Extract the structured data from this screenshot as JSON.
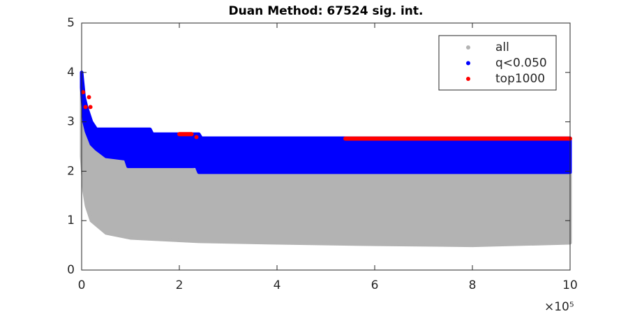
{
  "chart_data": {
    "type": "scatter",
    "title": "Duan Method: 67524 sig. int.",
    "x_multiplier": "×10⁵",
    "xlim": [
      0,
      1000000
    ],
    "xticks": [
      {
        "value": 0,
        "label": "0"
      },
      {
        "value": 200000,
        "label": "2"
      },
      {
        "value": 400000,
        "label": "4"
      },
      {
        "value": 600000,
        "label": "6"
      },
      {
        "value": 800000,
        "label": "8"
      },
      {
        "value": 1000000,
        "label": "10"
      }
    ],
    "ylim": [
      0,
      5
    ],
    "yticks": [
      0,
      1,
      2,
      3,
      4,
      5
    ],
    "legend": "top-right",
    "series": [
      {
        "name": "all",
        "color": "#b3b3b3",
        "x": [
          0,
          5000,
          10000,
          20000,
          50000,
          100000,
          200000,
          240000,
          400000,
          600000,
          800000,
          1000000
        ],
        "upper": [
          3.9,
          3.0,
          2.8,
          2.6,
          2.4,
          2.2,
          2.1,
          2.0,
          2.0,
          2.0,
          2.0,
          2.0
        ],
        "lower": [
          2.3,
          1.6,
          1.3,
          1.0,
          0.75,
          0.65,
          0.6,
          0.58,
          0.55,
          0.52,
          0.5,
          0.55
        ]
      },
      {
        "name": "q<0.050",
        "color": "#0000ff",
        "x": [
          0,
          5000,
          10000,
          20000,
          30000,
          50000,
          90000,
          95000,
          140000,
          145000,
          235000,
          240000,
          245000,
          1000000
        ],
        "upper": [
          4.0,
          3.5,
          3.3,
          3.0,
          2.85,
          2.85,
          2.85,
          2.85,
          2.85,
          2.75,
          2.75,
          2.75,
          2.67,
          2.67
        ],
        "lower": [
          3.7,
          3.0,
          2.8,
          2.55,
          2.45,
          2.3,
          2.25,
          2.1,
          2.1,
          2.1,
          2.1,
          1.98,
          1.98,
          1.98
        ]
      },
      {
        "name": "top1000",
        "color": "#ff0000",
        "x": [
          3000,
          null,
          8000,
          null,
          15000,
          null,
          18000,
          null,
          200000,
          225000,
          null,
          235000,
          null,
          540000,
          1000000
        ],
        "values": [
          3.6,
          null,
          3.3,
          null,
          3.5,
          null,
          3.3,
          null,
          2.75,
          2.75,
          null,
          2.69,
          null,
          2.66,
          2.66
        ]
      }
    ]
  }
}
